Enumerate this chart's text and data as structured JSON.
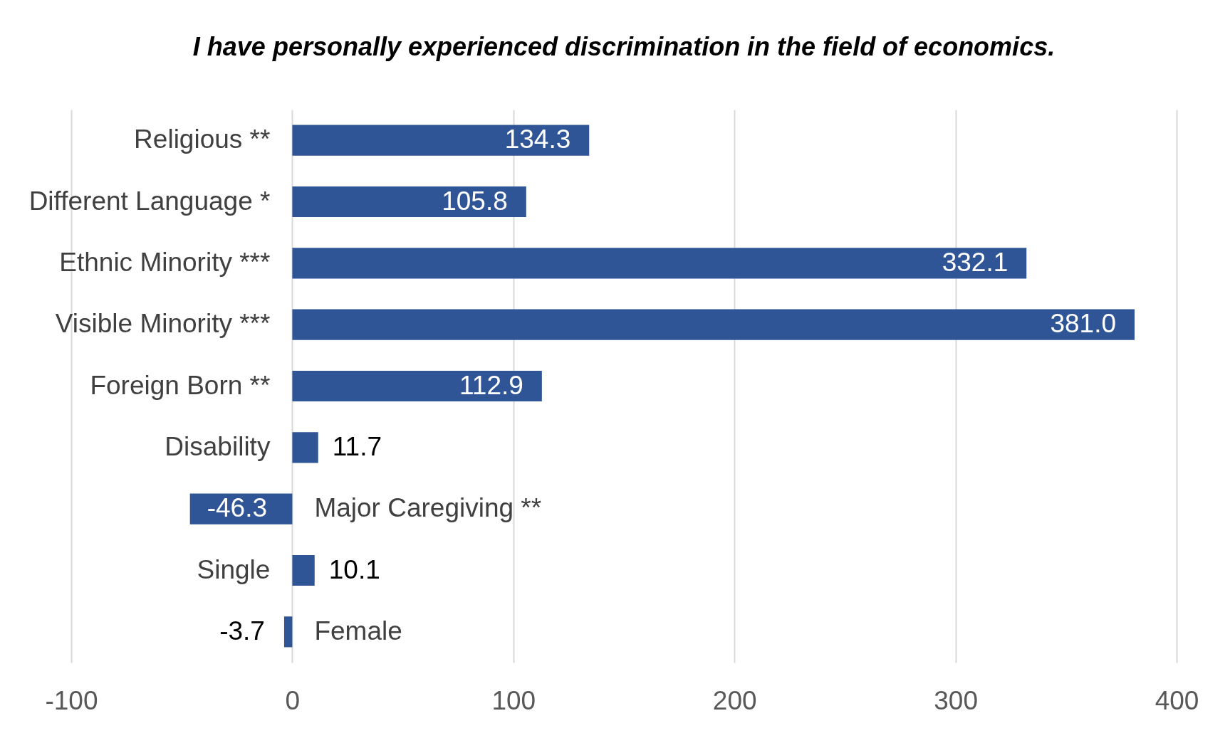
{
  "chart_data": {
    "type": "bar",
    "orientation": "horizontal",
    "title": "I have personally experienced discrimination in the field of economics.",
    "categories": [
      "Religious **",
      "Different Language *",
      "Ethnic Minority ***",
      "Visible Minority ***",
      "Foreign Born **",
      "Disability",
      "Major Caregiving **",
      "Single",
      "Female"
    ],
    "values": [
      134.3,
      105.8,
      332.1,
      381.0,
      112.9,
      11.7,
      -46.3,
      10.1,
      -3.7
    ],
    "value_labels": [
      "134.3",
      "105.8",
      "332.1",
      "381.0",
      "112.9",
      "11.7",
      "-46.3",
      "10.1",
      "-3.7"
    ],
    "color": "#2f5597",
    "xlim": [
      -100,
      400
    ],
    "xticks": [
      -100,
      0,
      100,
      200,
      300,
      400
    ],
    "grid": "x"
  }
}
